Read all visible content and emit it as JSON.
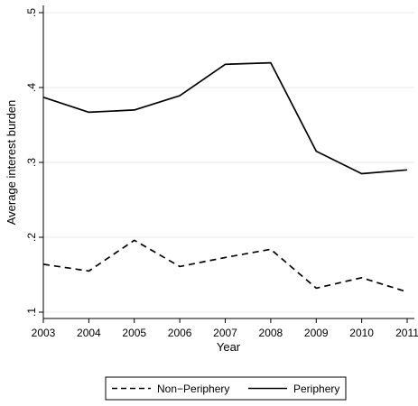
{
  "chart_data": {
    "type": "line",
    "title": "",
    "xlabel": "Year",
    "ylabel": "Average interest burden",
    "x": [
      2003,
      2004,
      2005,
      2006,
      2007,
      2008,
      2009,
      2010,
      2011
    ],
    "xlim": [
      2003,
      2011
    ],
    "ylim": [
      0.1,
      0.5
    ],
    "x_ticks": [
      "2003",
      "2004",
      "2005",
      "2006",
      "2007",
      "2008",
      "2009",
      "2010",
      "2011"
    ],
    "y_ticks": [
      {
        "value": 0.1,
        "label": ".1"
      },
      {
        "value": 0.2,
        "label": ".2"
      },
      {
        "value": 0.3,
        "label": ".3"
      },
      {
        "value": 0.4,
        "label": ".4"
      },
      {
        "value": 0.5,
        "label": ".5"
      }
    ],
    "grid": true,
    "legend_position": "bottom-center",
    "series": [
      {
        "name": "Non−Periphery",
        "style": "dashed",
        "color": "#000000",
        "values": [
          0.164,
          0.155,
          0.196,
          0.161,
          0.173,
          0.184,
          0.132,
          0.146,
          0.127
        ]
      },
      {
        "name": "Periphery",
        "style": "solid",
        "color": "#000000",
        "values": [
          0.387,
          0.367,
          0.37,
          0.389,
          0.431,
          0.433,
          0.315,
          0.285,
          0.29
        ]
      }
    ]
  }
}
